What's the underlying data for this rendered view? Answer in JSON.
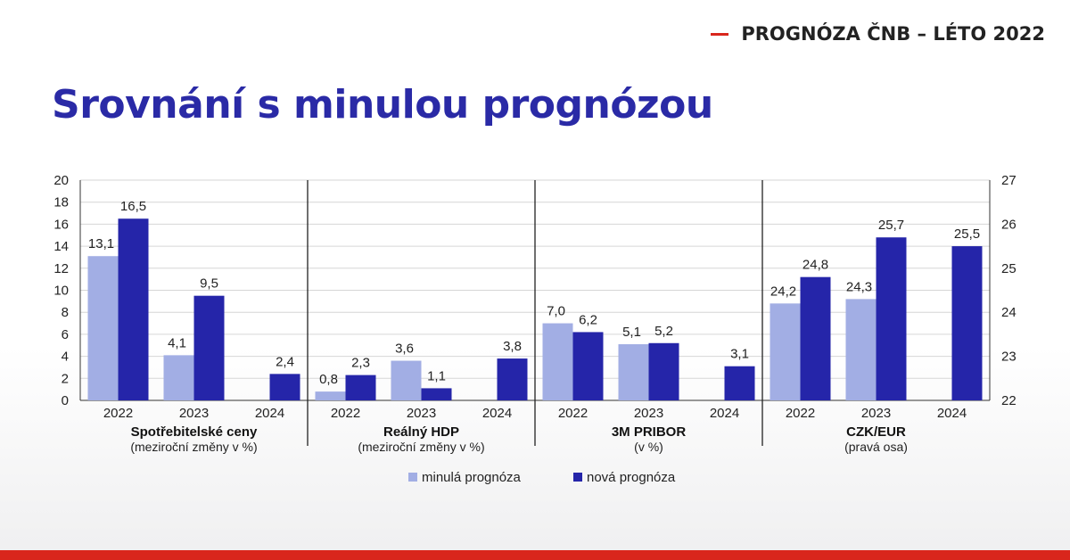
{
  "header": {
    "tag": "PROGNÓZA ČNB – LÉTO 2022"
  },
  "title": "Srovnání s minulou prognózou",
  "colors": {
    "accent": "#d9261c",
    "title": "#2a2aa6",
    "previous": "#a2aee4",
    "new": "#2525a9"
  },
  "chart_data": {
    "type": "bar",
    "left_axis": {
      "ylim": [
        0,
        20
      ],
      "ticks": [
        "0",
        "2",
        "4",
        "6",
        "8",
        "10",
        "12",
        "14",
        "16",
        "18",
        "20"
      ]
    },
    "right_axis": {
      "ylim": [
        22,
        27
      ],
      "ticks": [
        "22",
        "23",
        "24",
        "25",
        "26",
        "27"
      ]
    },
    "grid": true,
    "legend_position": "bottom",
    "series": [
      {
        "name": "minulá prognóza",
        "color": "#a2aee4"
      },
      {
        "name": "nová prognóza",
        "color": "#2525a9"
      }
    ],
    "groups": [
      {
        "name": "Spotřebitelské ceny",
        "subtitle": "(meziroční změny v %)",
        "axis": "left",
        "categories": [
          "2022",
          "2023",
          "2024"
        ],
        "previous": [
          13.1,
          4.1,
          null
        ],
        "new": [
          16.5,
          9.5,
          2.4
        ],
        "previous_labels": [
          "13,1",
          "4,1",
          ""
        ],
        "new_labels": [
          "16,5",
          "9,5",
          "2,4"
        ]
      },
      {
        "name": "Reálný HDP",
        "subtitle": "(meziroční změny v %)",
        "axis": "left",
        "categories": [
          "2022",
          "2023",
          "2024"
        ],
        "previous": [
          0.8,
          3.6,
          null
        ],
        "new": [
          2.3,
          1.1,
          3.8
        ],
        "previous_labels": [
          "0,8",
          "3,6",
          ""
        ],
        "new_labels": [
          "2,3",
          "1,1",
          "3,8"
        ]
      },
      {
        "name": "3M PRIBOR",
        "subtitle": "(v %)",
        "axis": "left",
        "categories": [
          "2022",
          "2023",
          "2024"
        ],
        "previous": [
          7.0,
          5.1,
          null
        ],
        "new": [
          6.2,
          5.2,
          3.1
        ],
        "previous_labels": [
          "7,0",
          "5,1",
          ""
        ],
        "new_labels": [
          "6,2",
          "5,2",
          "3,1"
        ]
      },
      {
        "name": "CZK/EUR",
        "subtitle": "(pravá osa)",
        "axis": "right",
        "categories": [
          "2022",
          "2023",
          "2024"
        ],
        "previous": [
          24.2,
          24.3,
          null
        ],
        "new": [
          24.8,
          25.7,
          25.5
        ],
        "previous_labels": [
          "24,2",
          "24,3",
          ""
        ],
        "new_labels": [
          "24,8",
          "25,7",
          "25,5"
        ]
      }
    ]
  }
}
